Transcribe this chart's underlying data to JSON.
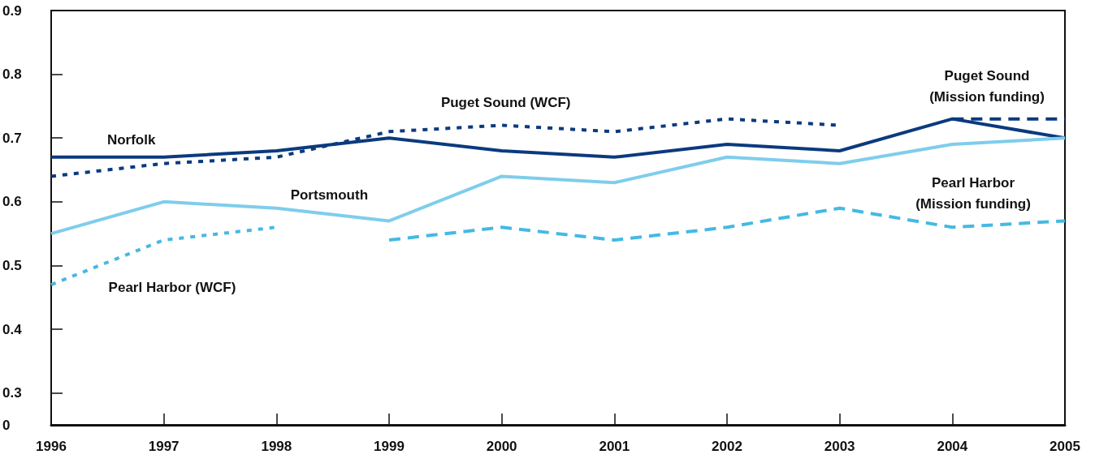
{
  "chart_data": {
    "type": "line",
    "x": [
      1996,
      1997,
      1998,
      1999,
      2000,
      2001,
      2002,
      2003,
      2004,
      2005
    ],
    "xlim": [
      1996,
      2005
    ],
    "xticks": [
      1996,
      1997,
      1998,
      1999,
      2000,
      2001,
      2002,
      2003,
      2004,
      2005
    ],
    "ylim": [
      0.25,
      0.9
    ],
    "yticks": [
      {
        "value": 0.25,
        "label": "0"
      },
      0.3,
      0.4,
      0.5,
      0.6,
      0.7,
      0.8,
      0.9
    ],
    "grid": false,
    "marker": "none",
    "series": [
      {
        "name": "Norfolk",
        "color": "#0b3a7e",
        "line_style": "solid",
        "values": [
          0.67,
          0.67,
          0.68,
          0.7,
          0.68,
          0.67,
          0.69,
          0.68,
          0.73,
          0.7
        ]
      },
      {
        "name": "Puget Sound (WCF)",
        "color": "#0b3a7e",
        "line_style": "dotted",
        "values": [
          0.64,
          0.66,
          0.67,
          0.71,
          0.72,
          0.71,
          0.73,
          0.72,
          null,
          null
        ]
      },
      {
        "name": "Puget Sound\n(Mission funding)",
        "color": "#0b3a7e",
        "line_style": "dashed",
        "values": [
          null,
          null,
          null,
          null,
          null,
          null,
          null,
          null,
          0.73,
          0.73
        ]
      },
      {
        "name": "Portsmouth",
        "color": "#7fcdec",
        "line_style": "solid",
        "values": [
          0.55,
          0.6,
          0.59,
          0.57,
          0.64,
          0.63,
          0.67,
          0.66,
          0.69,
          0.7
        ]
      },
      {
        "name": "Pearl Harbor (WCF)",
        "color": "#45b9e2",
        "line_style": "dotted",
        "values": [
          0.47,
          0.54,
          0.56,
          null,
          null,
          null,
          null,
          null,
          null,
          null
        ]
      },
      {
        "name": "Pearl Harbor\n(Mission funding)",
        "color": "#45b9e2",
        "line_style": "dashed",
        "values": [
          null,
          null,
          null,
          0.54,
          0.56,
          0.54,
          0.56,
          0.59,
          0.56,
          0.57
        ]
      }
    ]
  }
}
